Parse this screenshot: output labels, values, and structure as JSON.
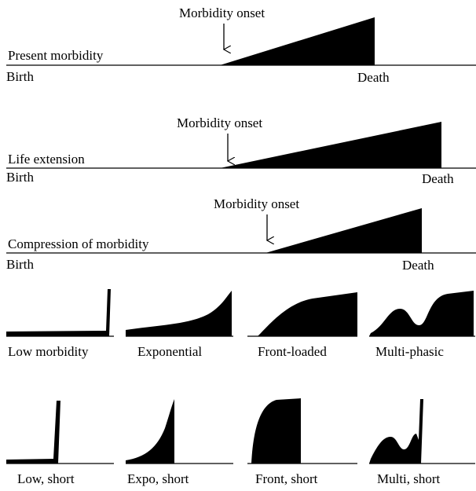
{
  "panels": [
    {
      "label": "Present morbidity",
      "onset": "Morbidity onset",
      "birth": "Birth",
      "death": "Death"
    },
    {
      "label": "Life extension",
      "onset": "Morbidity onset",
      "birth": "Birth",
      "death": "Death"
    },
    {
      "label": "Compression of morbidity",
      "onset": "Morbidity onset",
      "birth": "Birth",
      "death": "Death"
    }
  ],
  "shapes": [
    {
      "label": "Low morbidity"
    },
    {
      "label": "Exponential"
    },
    {
      "label": "Front-loaded"
    },
    {
      "label": "Multi-phasic"
    },
    {
      "label": "Low, short"
    },
    {
      "label": "Expo, short"
    },
    {
      "label": "Front, short"
    },
    {
      "label": "Multi, short"
    }
  ]
}
